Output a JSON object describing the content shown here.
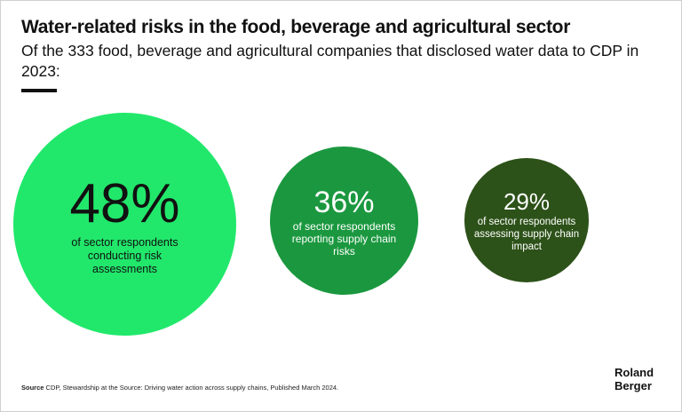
{
  "header": {
    "title": "Water-related risks in the food, beverage and agricultural sector",
    "subtitle": "Of the 333 food, beverage and agricultural companies that disclosed water data to CDP in 2023:"
  },
  "stats": [
    {
      "value": "48%",
      "label": "of sector respondents conducting risk assessments",
      "color": "#21e86b"
    },
    {
      "value": "36%",
      "label": "of sector respondents reporting supply chain risks",
      "color": "#1b983f"
    },
    {
      "value": "29%",
      "label": "of sector respondents assessing supply chain impact",
      "color": "#2d5219"
    }
  ],
  "footer": {
    "source_label": "Source",
    "source_text": "CDP, Stewardship at the Source: Driving water action across supply chains, Published March 2024.",
    "logo_line1": "Roland",
    "logo_line2": "Berger"
  }
}
